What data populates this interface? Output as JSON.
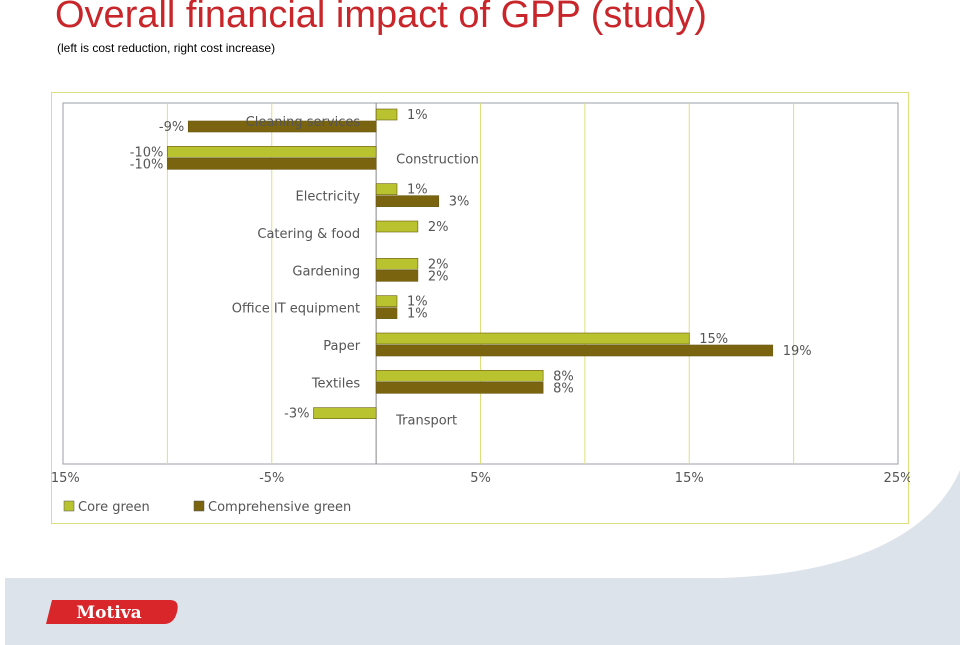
{
  "slide": {
    "title": "Overall financial impact of GPP (study)",
    "subtitle": "(left is cost reduction, right cost increase)",
    "logo_text": "Motiva"
  },
  "colors": {
    "core": "#b9c32f",
    "comprehensive": "#7a6410",
    "title": "#c8262a",
    "frame": "#dde07a",
    "logo": "#d8262a"
  },
  "chart_data": {
    "type": "bar",
    "orientation": "horizontal",
    "title": "",
    "xlabel": "",
    "ylabel": "",
    "xlim": [
      -15,
      25
    ],
    "xticks": [
      -15,
      -5,
      5,
      15,
      25
    ],
    "xtick_labels": [
      "-15%",
      "-5%",
      "5%",
      "15%",
      "25%"
    ],
    "grid": true,
    "legend": "bottom-left",
    "categories": [
      "Cleaning services",
      "Construction",
      "Electricity",
      "Catering & food",
      "Gardening",
      "Office IT equipment",
      "Paper",
      "Textiles",
      "Transport"
    ],
    "series": [
      {
        "name": "Core green",
        "values": [
          1,
          -10,
          1,
          2,
          2,
          1,
          15,
          8,
          -3
        ],
        "labels": [
          "1%",
          "-10%",
          "1%",
          "2%",
          "2%",
          "1%",
          "15%",
          "8%",
          "-3%"
        ]
      },
      {
        "name": "Comprehensive green",
        "values": [
          -9,
          -10,
          3,
          null,
          2,
          1,
          19,
          8,
          null
        ],
        "labels": [
          "-9%",
          "-10%",
          "3%",
          "",
          "2%",
          "1%",
          "19%",
          "8%",
          ""
        ]
      }
    ]
  }
}
